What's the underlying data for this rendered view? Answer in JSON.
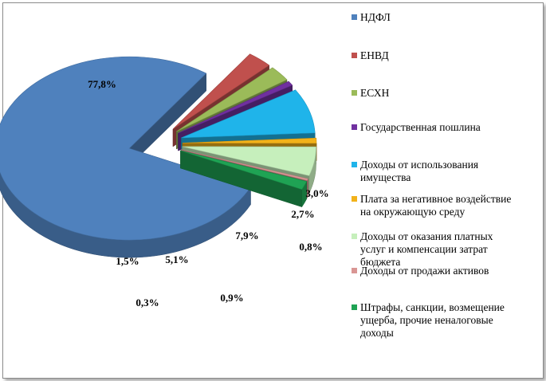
{
  "chart_data": {
    "type": "pie",
    "title": "",
    "labels": [
      "НДФЛ",
      "ЕНВД",
      "ЕСХН",
      "Государственная пошлина",
      "Доходы от использования имущества",
      "Плата за негативное воздействие на окружающую среду",
      "Доходы от оказания платных услуг и компенсации затрат бюджета",
      "Доходы от продажи активов",
      "Штрафы, санкции, возмещение ущерба, прочие неналоговые доходы"
    ],
    "values": [
      77.8,
      3.0,
      2.7,
      0.8,
      7.9,
      0.9,
      5.1,
      0.3,
      1.5
    ],
    "value_labels": [
      "77,8%",
      "3,0%",
      "2,7%",
      "0,8%",
      "7,9%",
      "0,9%",
      "5,1%",
      "0,3%",
      "1,5%"
    ],
    "colors": [
      "#4f81bd",
      "#c0504d",
      "#9bbb59",
      "#7030a0",
      "#1fb4ea",
      "#f2b21a",
      "#c6efbc",
      "#d99694",
      "#1fa354"
    ],
    "legend_position": "right",
    "exploded": true,
    "style": "3d"
  },
  "legend": {
    "lines": [
      [
        "НДФЛ"
      ],
      [
        "ЕНВД"
      ],
      [
        "ЕСХН"
      ],
      [
        "Государственная пошлина"
      ],
      [
        "Доходы от использования",
        "имущества"
      ],
      [
        "Плата за негативное воздействие",
        "на окружающую среду"
      ],
      [
        "Доходы от оказания платных",
        "услуг и компенсации затрат",
        "бюджета"
      ],
      [
        "Доходы от продажи активов"
      ],
      [
        "Штрафы, санкции,  возмещение",
        "ущерба, прочие неналоговые",
        "доходы"
      ]
    ]
  }
}
